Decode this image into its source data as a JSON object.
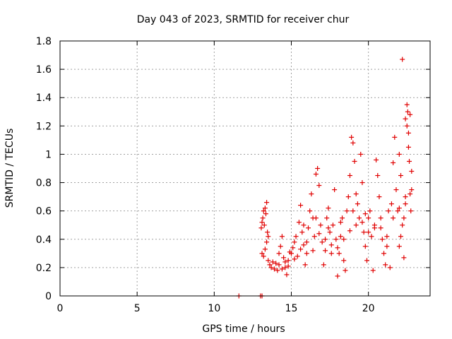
{
  "chart_data": {
    "type": "scatter",
    "title": "Day 043 of 2023, SRMTID for receiver chur",
    "xlabel": "GPS time / hours",
    "ylabel": "SRMTID / TECUs",
    "xlim": [
      0,
      24
    ],
    "ylim": [
      0,
      1.8
    ],
    "xticks": [
      0,
      5,
      10,
      15,
      20
    ],
    "xtick_labels": [
      "0",
      "5",
      "10",
      "15",
      "20"
    ],
    "yticks": [
      0,
      0.2,
      0.4,
      0.6,
      0.8,
      1.0,
      1.2,
      1.4,
      1.6,
      1.8
    ],
    "ytick_labels": [
      "0",
      "0.2",
      "0.4",
      "0.6",
      "0.8",
      "1",
      "1.2",
      "1.4",
      "1.6",
      "1.8"
    ],
    "grid": true,
    "marker": "plus",
    "color": "#e00000",
    "series": [
      {
        "name": "SRMTID",
        "points": [
          [
            11.6,
            0.0
          ],
          [
            13.0,
            0.0
          ],
          [
            13.1,
            0.0
          ],
          [
            13.05,
            0.48
          ],
          [
            13.1,
            0.52
          ],
          [
            13.15,
            0.55
          ],
          [
            13.2,
            0.6
          ],
          [
            13.25,
            0.5
          ],
          [
            13.3,
            0.62
          ],
          [
            13.35,
            0.58
          ],
          [
            13.4,
            0.66
          ],
          [
            13.45,
            0.45
          ],
          [
            13.5,
            0.42
          ],
          [
            13.1,
            0.3
          ],
          [
            13.2,
            0.28
          ],
          [
            13.3,
            0.33
          ],
          [
            13.4,
            0.38
          ],
          [
            13.5,
            0.25
          ],
          [
            13.6,
            0.22
          ],
          [
            13.7,
            0.2
          ],
          [
            13.8,
            0.24
          ],
          [
            13.9,
            0.19
          ],
          [
            14.0,
            0.23
          ],
          [
            14.1,
            0.18
          ],
          [
            14.2,
            0.3
          ],
          [
            14.3,
            0.35
          ],
          [
            14.4,
            0.42
          ],
          [
            14.5,
            0.27
          ],
          [
            14.6,
            0.2
          ],
          [
            14.7,
            0.15
          ],
          [
            14.8,
            0.25
          ],
          [
            14.9,
            0.31
          ],
          [
            15.0,
            0.3
          ],
          [
            15.1,
            0.34
          ],
          [
            15.2,
            0.38
          ],
          [
            15.3,
            0.42
          ],
          [
            15.4,
            0.28
          ],
          [
            15.5,
            0.52
          ],
          [
            15.6,
            0.64
          ],
          [
            15.7,
            0.45
          ],
          [
            15.8,
            0.36
          ],
          [
            15.9,
            0.22
          ],
          [
            16.0,
            0.3
          ],
          [
            16.1,
            0.48
          ],
          [
            16.2,
            0.6
          ],
          [
            16.3,
            0.72
          ],
          [
            16.4,
            0.55
          ],
          [
            16.5,
            0.42
          ],
          [
            16.6,
            0.86
          ],
          [
            16.7,
            0.9
          ],
          [
            16.8,
            0.78
          ],
          [
            16.9,
            0.5
          ],
          [
            17.0,
            0.38
          ],
          [
            17.1,
            0.22
          ],
          [
            17.2,
            0.32
          ],
          [
            17.3,
            0.55
          ],
          [
            17.4,
            0.62
          ],
          [
            17.5,
            0.45
          ],
          [
            17.6,
            0.3
          ],
          [
            17.7,
            0.5
          ],
          [
            17.8,
            0.75
          ],
          [
            17.9,
            0.4
          ],
          [
            18.0,
            0.14
          ],
          [
            18.1,
            0.3
          ],
          [
            18.2,
            0.42
          ],
          [
            18.3,
            0.55
          ],
          [
            18.4,
            0.25
          ],
          [
            18.5,
            0.18
          ],
          [
            18.6,
            0.6
          ],
          [
            18.7,
            0.7
          ],
          [
            18.8,
            0.85
          ],
          [
            18.9,
            1.12
          ],
          [
            19.0,
            1.08
          ],
          [
            19.1,
            0.95
          ],
          [
            19.2,
            0.72
          ],
          [
            19.3,
            0.65
          ],
          [
            19.4,
            0.55
          ],
          [
            19.5,
            1.0
          ],
          [
            19.6,
            0.8
          ],
          [
            19.7,
            0.45
          ],
          [
            19.8,
            0.35
          ],
          [
            19.9,
            0.25
          ],
          [
            20.0,
            0.55
          ],
          [
            20.1,
            0.6
          ],
          [
            20.2,
            0.42
          ],
          [
            20.3,
            0.18
          ],
          [
            20.4,
            0.48
          ],
          [
            20.5,
            0.96
          ],
          [
            20.6,
            0.85
          ],
          [
            20.7,
            0.7
          ],
          [
            20.8,
            0.55
          ],
          [
            20.9,
            0.4
          ],
          [
            21.0,
            0.3
          ],
          [
            21.1,
            0.22
          ],
          [
            21.2,
            0.35
          ],
          [
            21.3,
            0.6
          ],
          [
            21.4,
            0.2
          ],
          [
            21.5,
            0.65
          ],
          [
            21.6,
            0.94
          ],
          [
            21.7,
            1.12
          ],
          [
            21.8,
            0.75
          ],
          [
            21.9,
            0.6
          ],
          [
            22.0,
            1.0
          ],
          [
            22.1,
            0.85
          ],
          [
            22.2,
            1.67
          ],
          [
            22.3,
            0.27
          ],
          [
            22.4,
            1.25
          ],
          [
            22.5,
            1.35
          ],
          [
            22.55,
            1.3
          ],
          [
            22.6,
            1.05
          ],
          [
            22.65,
            0.95
          ],
          [
            22.7,
            0.72
          ],
          [
            22.75,
            0.6
          ],
          [
            22.8,
            0.88
          ],
          [
            22.5,
            1.2
          ],
          [
            22.6,
            1.15
          ],
          [
            22.7,
            1.28
          ],
          [
            22.3,
            0.55
          ],
          [
            22.4,
            0.65
          ],
          [
            22.2,
            0.5
          ],
          [
            22.1,
            0.42
          ],
          [
            22.0,
            0.35
          ],
          [
            14.2,
            0.22
          ],
          [
            14.4,
            0.19
          ],
          [
            14.6,
            0.24
          ],
          [
            14.8,
            0.21
          ],
          [
            15.2,
            0.26
          ],
          [
            15.6,
            0.33
          ],
          [
            16.0,
            0.38
          ],
          [
            16.4,
            0.32
          ],
          [
            16.8,
            0.44
          ],
          [
            17.2,
            0.4
          ],
          [
            17.6,
            0.36
          ],
          [
            18.0,
            0.34
          ],
          [
            18.4,
            0.4
          ],
          [
            18.8,
            0.46
          ],
          [
            19.2,
            0.5
          ],
          [
            19.6,
            0.52
          ],
          [
            20.0,
            0.45
          ],
          [
            20.4,
            0.5
          ],
          [
            20.8,
            0.48
          ],
          [
            21.2,
            0.42
          ],
          [
            21.6,
            0.55
          ],
          [
            22.0,
            0.62
          ],
          [
            22.4,
            0.7
          ],
          [
            22.8,
            0.75
          ],
          [
            15.8,
            0.5
          ],
          [
            16.6,
            0.55
          ],
          [
            17.4,
            0.48
          ],
          [
            18.2,
            0.52
          ],
          [
            19.0,
            0.6
          ],
          [
            19.8,
            0.58
          ]
        ]
      }
    ]
  }
}
